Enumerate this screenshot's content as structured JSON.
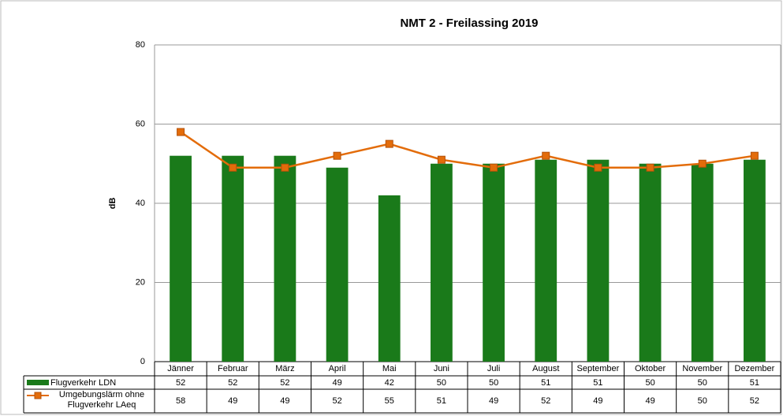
{
  "chart_data": {
    "type": "bar-line",
    "title": "NMT 2 - Freilassing 2019",
    "y_label": "dB",
    "categories": [
      "Jänner",
      "Februar",
      "März",
      "April",
      "Mai",
      "Juni",
      "Juli",
      "August",
      "September",
      "Oktober",
      "November",
      "Dezember"
    ],
    "series": [
      {
        "name": "Flugverkehr LDN",
        "type": "bar",
        "color": "#1a7a1a",
        "values": [
          52,
          52,
          52,
          49,
          42,
          50,
          50,
          51,
          51,
          50,
          50,
          51
        ]
      },
      {
        "name": "Umgebungslärm ohne Flugverkehr LAeq",
        "type": "line",
        "color": "#e36c0a",
        "values": [
          58,
          49,
          49,
          52,
          55,
          51,
          49,
          52,
          49,
          49,
          50,
          52
        ]
      }
    ],
    "ylim": [
      0,
      80
    ],
    "yticks": [
      0,
      20,
      40,
      60,
      80
    ],
    "grid": true
  }
}
